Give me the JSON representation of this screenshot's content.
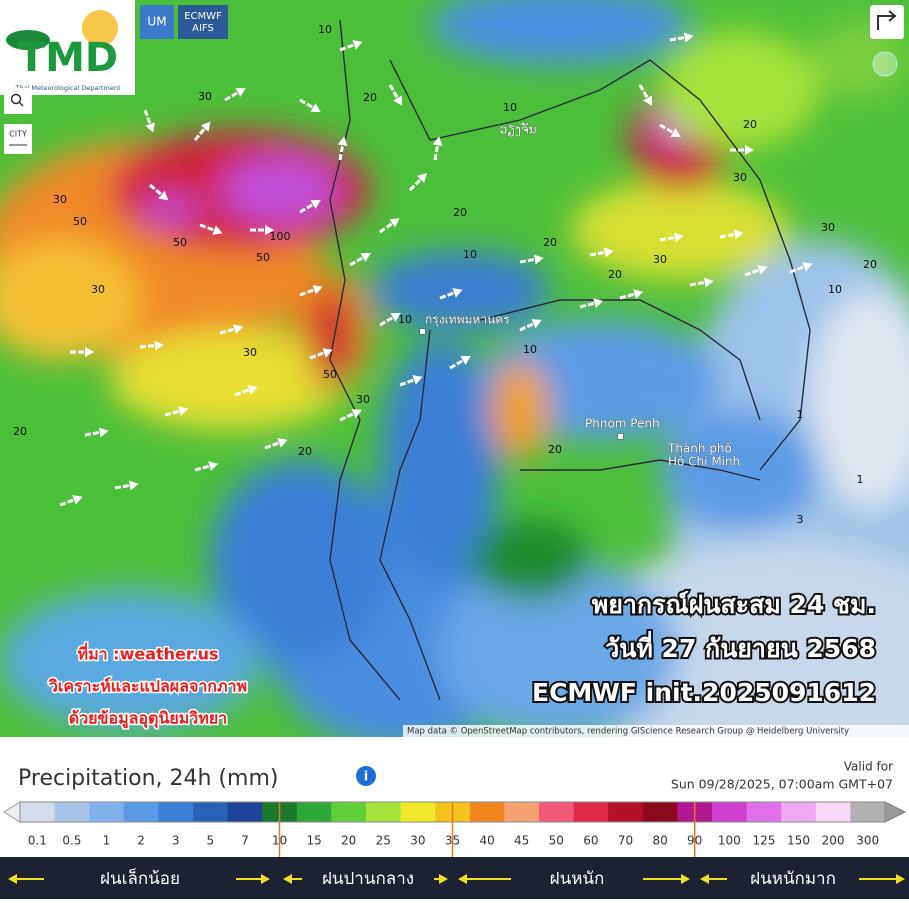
{
  "logo": {
    "title": "TMD",
    "subtitle": "Thai Meteorological Department"
  },
  "model_buttons": {
    "um": "UM",
    "ecmwf": [
      "ECMWF",
      "AIFS"
    ]
  },
  "city_button": "CITY",
  "cities": [
    "กรุงเทพมหานคร",
    "Phnom Penh",
    "Thành phố",
    "Hồ Chí Minh",
    "ວຽງຈັນ"
  ],
  "contour_labels": [
    "20",
    "30",
    "30",
    "30",
    "50",
    "30",
    "50",
    "100",
    "50",
    "30",
    "50",
    "30",
    "20",
    "20",
    "20",
    "10",
    "20",
    "20",
    "30",
    "20",
    "30",
    "10",
    "20",
    "20",
    "30",
    "10",
    "20",
    "1",
    "3",
    "1",
    "10",
    "10",
    "10"
  ],
  "forecast_title": [
    "พยากรณ์ฝนสะสม 24 ชม.",
    "วันที่ 27 กันยายน 2568",
    "ECMWF init.2025091612"
  ],
  "source_note": [
    "ที่มา :weather.us",
    "วิเคราะห์และแปลผลจากภาพ",
    "ด้วยข้อมูลอุตุนิยมวิทยา"
  ],
  "attribution": "Map data © OpenStreetMap contributors, rendering GIScience Research Group @ Heidelberg University",
  "legend": {
    "title": "Precipitation, 24h (mm)",
    "valid_label": "Valid for",
    "valid_time": "Sun 09/28/2025, 07:00am GMT+07",
    "bins": [
      {
        "label": "0.1",
        "color": "#d3dce8"
      },
      {
        "label": "0.5",
        "color": "#a9c7ea"
      },
      {
        "label": "1",
        "color": "#7fb1ea"
      },
      {
        "label": "2",
        "color": "#5a9be6"
      },
      {
        "label": "3",
        "color": "#3a80d6"
      },
      {
        "label": "5",
        "color": "#2a62b8"
      },
      {
        "label": "7",
        "color": "#1e459a"
      },
      {
        "label": "10",
        "color": "#1a7a2c"
      },
      {
        "label": "15",
        "color": "#2fa83a"
      },
      {
        "label": "20",
        "color": "#5fcf3a"
      },
      {
        "label": "25",
        "color": "#a6e23a"
      },
      {
        "label": "30",
        "color": "#f0ea2a"
      },
      {
        "label": "35",
        "color": "#f5c21e"
      },
      {
        "label": "40",
        "color": "#f0861c"
      },
      {
        "label": "45",
        "color": "#f5a070"
      },
      {
        "label": "50",
        "color": "#f05a78"
      },
      {
        "label": "60",
        "color": "#e0284a"
      },
      {
        "label": "70",
        "color": "#b4102a"
      },
      {
        "label": "80",
        "color": "#8a0a1e"
      },
      {
        "label": "90",
        "color": "#b01890"
      },
      {
        "label": "100",
        "color": "#d040d0"
      },
      {
        "label": "125",
        "color": "#e070e8"
      },
      {
        "label": "150",
        "color": "#f0a8f0"
      },
      {
        "label": "200",
        "color": "#f8d8f8"
      },
      {
        "label": "300",
        "color": "#b0b0b0"
      }
    ],
    "categories": [
      "ฝนเล็กน้อย",
      "ฝนปานกลาง",
      "ฝนหนัก",
      "ฝนหนักมาก"
    ]
  }
}
